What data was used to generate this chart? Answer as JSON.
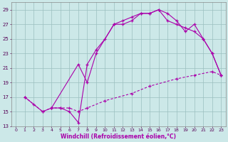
{
  "background_color": "#cce8e8",
  "grid_color": "#9bbfbf",
  "line_color": "#aa00aa",
  "marker": "+",
  "markersize": 3,
  "linewidth": 0.8,
  "xlabel": "Windchill (Refroidissement éolien,°C)",
  "xlim": [
    -0.5,
    23.5
  ],
  "ylim": [
    13,
    30
  ],
  "yticks": [
    13,
    15,
    17,
    19,
    21,
    23,
    25,
    27,
    29
  ],
  "xticks": [
    0,
    1,
    2,
    3,
    4,
    5,
    6,
    7,
    8,
    9,
    10,
    11,
    12,
    13,
    14,
    15,
    16,
    17,
    18,
    19,
    20,
    21,
    22,
    23
  ],
  "series1": [
    [
      1,
      17
    ],
    [
      2,
      16
    ],
    [
      3,
      15
    ],
    [
      4,
      15.5
    ],
    [
      5,
      15.5
    ],
    [
      6,
      15
    ],
    [
      7,
      13.5
    ],
    [
      8,
      21.5
    ],
    [
      9,
      23.5
    ],
    [
      10,
      25
    ],
    [
      11,
      27
    ],
    [
      12,
      27.5
    ],
    [
      13,
      28
    ],
    [
      14,
      28.5
    ],
    [
      15,
      28.5
    ],
    [
      16,
      29
    ],
    [
      17,
      28.5
    ],
    [
      18,
      27.5
    ],
    [
      19,
      26
    ],
    [
      20,
      27
    ],
    [
      21,
      25
    ],
    [
      22,
      23
    ],
    [
      23,
      20
    ]
  ],
  "series2": [
    [
      1,
      17
    ],
    [
      3,
      15
    ],
    [
      4,
      15.5
    ],
    [
      5,
      15.5
    ],
    [
      6,
      15.5
    ],
    [
      7,
      15
    ],
    [
      8,
      15.5
    ],
    [
      10,
      16.5
    ],
    [
      13,
      17.5
    ],
    [
      15,
      18.5
    ],
    [
      18,
      19.5
    ],
    [
      20,
      20
    ],
    [
      22,
      20.5
    ],
    [
      23,
      20
    ]
  ],
  "series3": [
    [
      4,
      15.5
    ],
    [
      7,
      21.5
    ],
    [
      8,
      19
    ],
    [
      9,
      23
    ],
    [
      11,
      27
    ],
    [
      12,
      27
    ],
    [
      13,
      27.5
    ],
    [
      14,
      28.5
    ],
    [
      15,
      28.5
    ],
    [
      16,
      29
    ],
    [
      17,
      27.5
    ],
    [
      18,
      27
    ],
    [
      19,
      26.5
    ],
    [
      20,
      26
    ],
    [
      21,
      25
    ],
    [
      22,
      23
    ],
    [
      23,
      20
    ]
  ]
}
